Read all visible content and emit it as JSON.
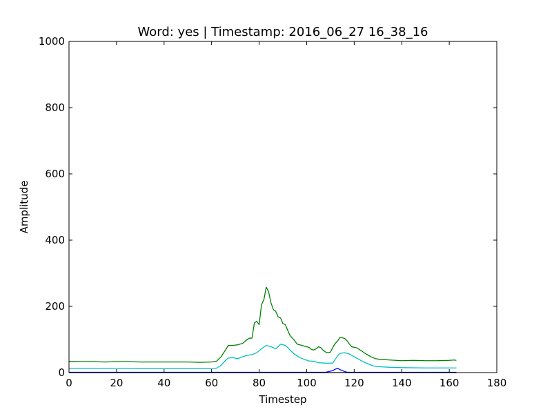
{
  "chart_data": {
    "type": "line",
    "title": "Word: yes    |    Timestamp: 2016_06_27 16_38_16",
    "xlabel": "Timestep",
    "ylabel": "Amplitude",
    "xlim": [
      0,
      180
    ],
    "ylim": [
      0,
      1000
    ],
    "xticks": [
      "0",
      "20",
      "40",
      "60",
      "80",
      "100",
      "120",
      "140",
      "160",
      "180"
    ],
    "yticks": [
      "0",
      "200",
      "400",
      "600",
      "800",
      "1000"
    ],
    "grid": false,
    "series": [
      {
        "color": "#008000",
        "points": [
          [
            0,
            34
          ],
          [
            5,
            33
          ],
          [
            10,
            33
          ],
          [
            15,
            32
          ],
          [
            20,
            33
          ],
          [
            25,
            33
          ],
          [
            30,
            32
          ],
          [
            35,
            32
          ],
          [
            40,
            32
          ],
          [
            45,
            32
          ],
          [
            50,
            32
          ],
          [
            55,
            31
          ],
          [
            60,
            32
          ],
          [
            62,
            34
          ],
          [
            64,
            48
          ],
          [
            66,
            70
          ],
          [
            67,
            82
          ],
          [
            69,
            82
          ],
          [
            71,
            84
          ],
          [
            73,
            88
          ],
          [
            75,
            100
          ],
          [
            76,
            104
          ],
          [
            77,
            104
          ],
          [
            78,
            150
          ],
          [
            79,
            155
          ],
          [
            80,
            145
          ],
          [
            81,
            205
          ],
          [
            82,
            220
          ],
          [
            83,
            258
          ],
          [
            84,
            244
          ],
          [
            85,
            210
          ],
          [
            86,
            190
          ],
          [
            87,
            185
          ],
          [
            88,
            168
          ],
          [
            89,
            165
          ],
          [
            90,
            148
          ],
          [
            91,
            145
          ],
          [
            92,
            128
          ],
          [
            93,
            112
          ],
          [
            95,
            96
          ],
          [
            96,
            86
          ],
          [
            97,
            84
          ],
          [
            99,
            80
          ],
          [
            101,
            76
          ],
          [
            102,
            70
          ],
          [
            103,
            68
          ],
          [
            104,
            72
          ],
          [
            105,
            78
          ],
          [
            106,
            75
          ],
          [
            107,
            67
          ],
          [
            108,
            62
          ],
          [
            109,
            60
          ],
          [
            110,
            62
          ],
          [
            111,
            76
          ],
          [
            112,
            88
          ],
          [
            113,
            95
          ],
          [
            114,
            106
          ],
          [
            115,
            105
          ],
          [
            116,
            103
          ],
          [
            117,
            96
          ],
          [
            118,
            86
          ],
          [
            119,
            78
          ],
          [
            121,
            75
          ],
          [
            123,
            66
          ],
          [
            125,
            56
          ],
          [
            127,
            48
          ],
          [
            129,
            42
          ],
          [
            131,
            40
          ],
          [
            135,
            38
          ],
          [
            140,
            36
          ],
          [
            145,
            37
          ],
          [
            150,
            36
          ],
          [
            155,
            36
          ],
          [
            160,
            37
          ],
          [
            162,
            38
          ],
          [
            163,
            37
          ]
        ]
      },
      {
        "color": "#00bfbf",
        "points": [
          [
            0,
            13
          ],
          [
            10,
            13
          ],
          [
            20,
            13
          ],
          [
            30,
            12
          ],
          [
            40,
            12
          ],
          [
            50,
            12
          ],
          [
            60,
            12
          ],
          [
            62,
            13
          ],
          [
            64,
            22
          ],
          [
            66,
            38
          ],
          [
            67,
            44
          ],
          [
            69,
            45
          ],
          [
            71,
            42
          ],
          [
            73,
            48
          ],
          [
            74,
            50
          ],
          [
            75,
            52
          ],
          [
            77,
            54
          ],
          [
            79,
            60
          ],
          [
            81,
            72
          ],
          [
            83,
            82
          ],
          [
            84,
            80
          ],
          [
            85,
            78
          ],
          [
            86,
            75
          ],
          [
            87,
            72
          ],
          [
            88,
            78
          ],
          [
            89,
            86
          ],
          [
            90,
            84
          ],
          [
            91,
            82
          ],
          [
            92,
            76
          ],
          [
            93,
            68
          ],
          [
            95,
            55
          ],
          [
            97,
            46
          ],
          [
            99,
            40
          ],
          [
            101,
            35
          ],
          [
            103,
            34
          ],
          [
            105,
            30
          ],
          [
            107,
            29
          ],
          [
            109,
            28
          ],
          [
            111,
            29
          ],
          [
            112,
            40
          ],
          [
            113,
            50
          ],
          [
            114,
            58
          ],
          [
            116,
            60
          ],
          [
            118,
            56
          ],
          [
            120,
            48
          ],
          [
            122,
            40
          ],
          [
            124,
            32
          ],
          [
            126,
            26
          ],
          [
            128,
            20
          ],
          [
            130,
            18
          ],
          [
            135,
            16
          ],
          [
            140,
            15
          ],
          [
            150,
            14
          ],
          [
            160,
            14
          ],
          [
            163,
            14
          ]
        ]
      },
      {
        "color": "#0000ff",
        "points": [
          [
            0,
            1
          ],
          [
            50,
            1
          ],
          [
            100,
            1
          ],
          [
            108,
            1
          ],
          [
            111,
            6
          ],
          [
            112,
            10
          ],
          [
            113,
            13
          ],
          [
            114,
            9
          ],
          [
            115,
            6
          ],
          [
            116,
            3
          ],
          [
            117,
            1
          ],
          [
            130,
            1
          ],
          [
            163,
            1
          ]
        ]
      },
      {
        "color": "#000000",
        "points": [
          [
            0,
            0
          ],
          [
            163,
            0
          ]
        ]
      }
    ]
  }
}
